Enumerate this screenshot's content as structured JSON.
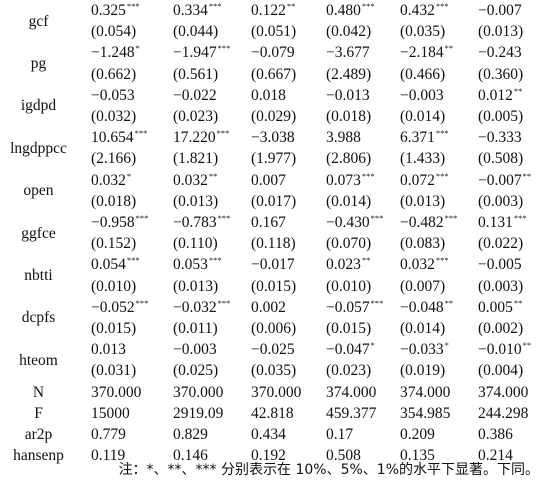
{
  "variables": [
    {
      "name": "gcf",
      "coefs": [
        {
          "value": "0.325",
          "stars": "***"
        },
        {
          "value": "0.334",
          "stars": "***"
        },
        {
          "value": "0.122",
          "stars": "**"
        },
        {
          "value": "0.480",
          "stars": "***"
        },
        {
          "value": "0.432",
          "stars": "***"
        },
        {
          "value": "−0.007",
          "stars": ""
        }
      ],
      "ses": [
        "(0.054)",
        "(0.044)",
        "(0.051)",
        "(0.042)",
        "(0.035)",
        "(0.013)"
      ]
    },
    {
      "name": "pg",
      "coefs": [
        {
          "value": "−1.248",
          "stars": "*"
        },
        {
          "value": "−1.947",
          "stars": "***"
        },
        {
          "value": "−0.079",
          "stars": ""
        },
        {
          "value": "−3.677",
          "stars": ""
        },
        {
          "value": "−2.184",
          "stars": "**"
        },
        {
          "value": "−0.243",
          "stars": ""
        }
      ],
      "ses": [
        "(0.662)",
        "(0.561)",
        "(0.667)",
        "(2.489)",
        "(0.466)",
        "(0.360)"
      ]
    },
    {
      "name": "igdpd",
      "coefs": [
        {
          "value": "−0.053",
          "stars": ""
        },
        {
          "value": "−0.022",
          "stars": ""
        },
        {
          "value": "0.018",
          "stars": ""
        },
        {
          "value": "−0.013",
          "stars": ""
        },
        {
          "value": "−0.003",
          "stars": ""
        },
        {
          "value": "0.012",
          "stars": "**"
        }
      ],
      "ses": [
        "(0.032)",
        "(0.023)",
        "(0.029)",
        "(0.018)",
        "(0.014)",
        "(0.005)"
      ]
    },
    {
      "name": "lngdppcc",
      "coefs": [
        {
          "value": "10.654",
          "stars": "***"
        },
        {
          "value": "17.220",
          "stars": "***"
        },
        {
          "value": "−3.038",
          "stars": ""
        },
        {
          "value": "3.988",
          "stars": ""
        },
        {
          "value": "6.371",
          "stars": "***"
        },
        {
          "value": "−0.333",
          "stars": ""
        }
      ],
      "ses": [
        "(2.166)",
        "(1.821)",
        "(1.977)",
        "(2.806)",
        "(1.433)",
        "(0.508)"
      ]
    },
    {
      "name": "open",
      "coefs": [
        {
          "value": "0.032",
          "stars": "*"
        },
        {
          "value": "0.032",
          "stars": "**"
        },
        {
          "value": "0.007",
          "stars": ""
        },
        {
          "value": "0.073",
          "stars": "***"
        },
        {
          "value": "0.072",
          "stars": "***"
        },
        {
          "value": "−0.007",
          "stars": "**"
        }
      ],
      "ses": [
        "(0.018)",
        "(0.013)",
        "(0.017)",
        "(0.014)",
        "(0.013)",
        "(0.003)"
      ]
    },
    {
      "name": "ggfce",
      "coefs": [
        {
          "value": "−0.958",
          "stars": "***"
        },
        {
          "value": "−0.783",
          "stars": "***"
        },
        {
          "value": "0.167",
          "stars": ""
        },
        {
          "value": "−0.430",
          "stars": "***"
        },
        {
          "value": "−0.482",
          "stars": "***"
        },
        {
          "value": "0.131",
          "stars": "***"
        }
      ],
      "ses": [
        "(0.152)",
        "(0.110)",
        "(0.118)",
        "(0.070)",
        "(0.083)",
        "(0.022)"
      ]
    },
    {
      "name": "nbtti",
      "coefs": [
        {
          "value": "0.054",
          "stars": "***"
        },
        {
          "value": "0.053",
          "stars": "***"
        },
        {
          "value": "−0.017",
          "stars": ""
        },
        {
          "value": "0.023",
          "stars": "**"
        },
        {
          "value": "0.032",
          "stars": "***"
        },
        {
          "value": "−0.005",
          "stars": ""
        }
      ],
      "ses": [
        "(0.010)",
        "(0.013)",
        "(0.015)",
        "(0.010)",
        "(0.007)",
        "(0.003)"
      ]
    },
    {
      "name": "dcpfs",
      "coefs": [
        {
          "value": "−0.052",
          "stars": "***"
        },
        {
          "value": "−0.032",
          "stars": "***"
        },
        {
          "value": "0.002",
          "stars": ""
        },
        {
          "value": "−0.057",
          "stars": "***"
        },
        {
          "value": "−0.048",
          "stars": "**"
        },
        {
          "value": "0.005",
          "stars": "**"
        }
      ],
      "ses": [
        "(0.015)",
        "(0.011)",
        "(0.006)",
        "(0.015)",
        "(0.014)",
        "(0.002)"
      ]
    },
    {
      "name": "hteom",
      "coefs": [
        {
          "value": "0.013",
          "stars": ""
        },
        {
          "value": "−0.003",
          "stars": ""
        },
        {
          "value": "−0.025",
          "stars": ""
        },
        {
          "value": "−0.047",
          "stars": "*"
        },
        {
          "value": "−0.033",
          "stars": "*"
        },
        {
          "value": "−0.010",
          "stars": "**"
        }
      ],
      "ses": [
        "(0.031)",
        "(0.025)",
        "(0.035)",
        "(0.023)",
        "(0.019)",
        "(0.004)"
      ]
    }
  ],
  "stats": [
    {
      "name": "N",
      "values": [
        "370.000",
        "370.000",
        "370.000",
        "374.000",
        "374.000",
        "374.000"
      ]
    },
    {
      "name": "F",
      "values": [
        "15000",
        "2919.09",
        "42.818",
        "459.377",
        "354.985",
        "244.298"
      ]
    },
    {
      "name": "ar2p",
      "values": [
        "0.779",
        "0.829",
        "0.434",
        "0.17",
        "0.209",
        "0.386"
      ]
    },
    {
      "name": "hansenp",
      "values": [
        "0.119",
        "0.146",
        "0.192",
        "0.508",
        "0.135",
        "0.214"
      ]
    }
  ],
  "note": "注：*、**、*** 分别表示在 10%、5%、1%的水平下显著。下同。"
}
